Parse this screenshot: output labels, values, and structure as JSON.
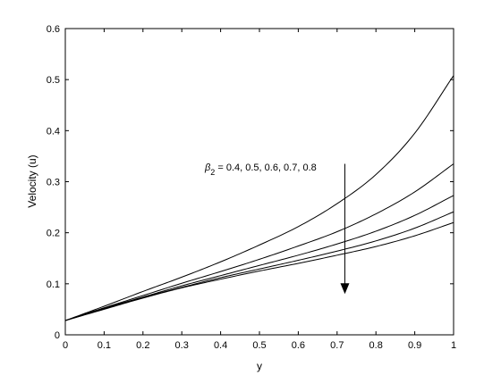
{
  "chart_data": {
    "type": "line",
    "xlabel": "y",
    "ylabel": "Velocity (u)",
    "xlim": [
      0,
      1
    ],
    "ylim": [
      0,
      0.6
    ],
    "xticks": [
      "0",
      "0.1",
      "0.2",
      "0.3",
      "0.4",
      "0.5",
      "0.6",
      "0.7",
      "0.8",
      "0.9",
      "1"
    ],
    "yticks": [
      "0",
      "0.1",
      "0.2",
      "0.3",
      "0.4",
      "0.5",
      "0.6"
    ],
    "grid": false,
    "annotation": {
      "symbol": "β",
      "subscript": "2",
      "text": " = 0.4, 0.5, 0.6, 0.7, 0.8",
      "arrow_x": 0.72,
      "arrow_y_start": 0.335,
      "arrow_y_end": 0.08
    },
    "x": [
      0,
      0.1,
      0.2,
      0.3,
      0.4,
      0.5,
      0.6,
      0.7,
      0.8,
      0.9,
      1.0
    ],
    "series": [
      {
        "values": [
          0.028,
          0.056,
          0.085,
          0.113,
          0.143,
          0.176,
          0.212,
          0.257,
          0.314,
          0.395,
          0.508
        ]
      },
      {
        "values": [
          0.028,
          0.053,
          0.077,
          0.101,
          0.124,
          0.148,
          0.174,
          0.202,
          0.237,
          0.28,
          0.335
        ]
      },
      {
        "values": [
          0.028,
          0.052,
          0.074,
          0.096,
          0.116,
          0.136,
          0.156,
          0.178,
          0.203,
          0.234,
          0.273
        ]
      },
      {
        "values": [
          0.028,
          0.051,
          0.073,
          0.093,
          0.112,
          0.129,
          0.146,
          0.164,
          0.184,
          0.209,
          0.241
        ]
      },
      {
        "values": [
          0.028,
          0.05,
          0.072,
          0.092,
          0.109,
          0.125,
          0.14,
          0.156,
          0.173,
          0.194,
          0.22
        ]
      }
    ]
  }
}
